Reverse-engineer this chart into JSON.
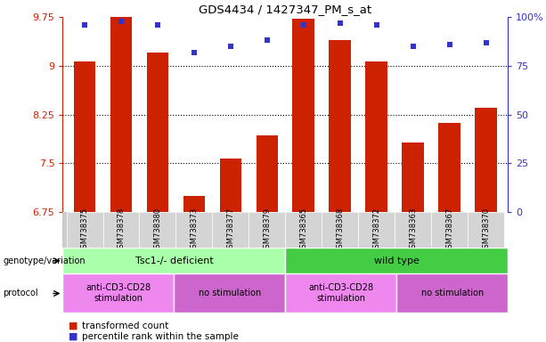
{
  "title": "GDS4434 / 1427347_PM_s_at",
  "samples": [
    "GSM738375",
    "GSM738378",
    "GSM738380",
    "GSM738373",
    "GSM738377",
    "GSM738379",
    "GSM738365",
    "GSM738368",
    "GSM738372",
    "GSM738363",
    "GSM738367",
    "GSM738370"
  ],
  "bar_values": [
    9.07,
    9.75,
    9.2,
    7.0,
    7.58,
    7.93,
    9.72,
    9.4,
    9.07,
    7.82,
    8.12,
    8.35
  ],
  "dot_values": [
    96,
    98,
    96,
    82,
    85,
    88,
    96,
    97,
    96,
    85,
    86,
    87
  ],
  "ylim_left": [
    6.75,
    9.75
  ],
  "ylim_right": [
    0,
    100
  ],
  "yticks_left": [
    6.75,
    7.5,
    8.25,
    9.0,
    9.75
  ],
  "yticks_right": [
    0,
    25,
    50,
    75,
    100
  ],
  "ytick_labels_left": [
    "6.75",
    "7.5",
    "8.25",
    "9",
    "9.75"
  ],
  "ytick_labels_right": [
    "0",
    "25",
    "50",
    "75",
    "100%"
  ],
  "bar_color": "#cc2200",
  "dot_color": "#3333cc",
  "genotype_groups": [
    {
      "label": "Tsc1-/- deficient",
      "start": 0,
      "end": 6,
      "color": "#aaffaa"
    },
    {
      "label": "wild type",
      "start": 6,
      "end": 12,
      "color": "#44cc44"
    }
  ],
  "protocol_groups": [
    {
      "label": "anti-CD3-CD28\nstimulation",
      "start": 0,
      "end": 3,
      "color": "#ee88ee"
    },
    {
      "label": "no stimulation",
      "start": 3,
      "end": 6,
      "color": "#cc66cc"
    },
    {
      "label": "anti-CD3-CD28\nstimulation",
      "start": 6,
      "end": 9,
      "color": "#ee88ee"
    },
    {
      "label": "no stimulation",
      "start": 9,
      "end": 12,
      "color": "#cc66cc"
    }
  ],
  "legend_items": [
    {
      "label": "transformed count",
      "color": "#cc2200"
    },
    {
      "label": "percentile rank within the sample",
      "color": "#3333cc"
    }
  ],
  "figsize": [
    6.13,
    3.84
  ],
  "dpi": 100
}
